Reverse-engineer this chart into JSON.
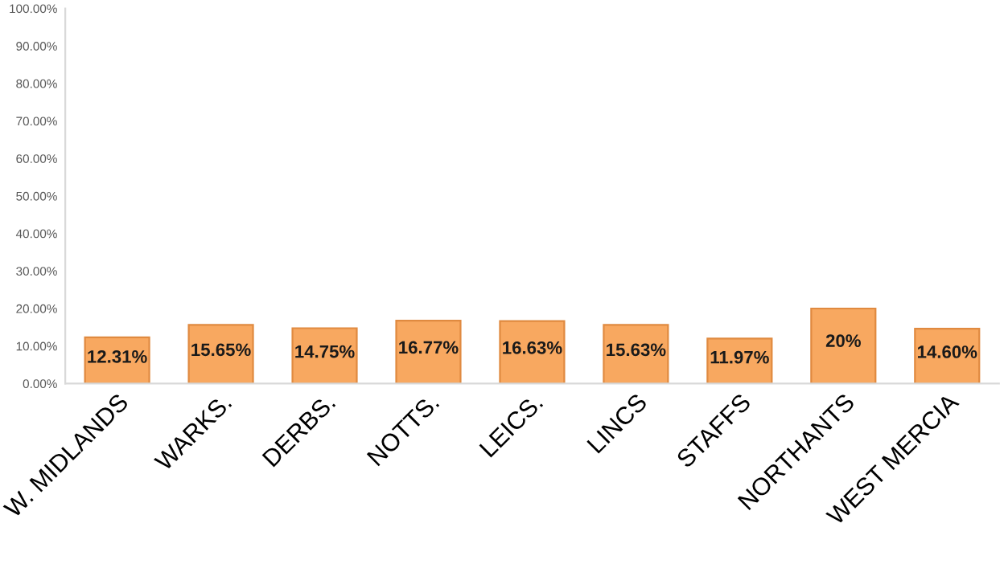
{
  "chart_data": {
    "type": "bar",
    "categories": [
      "W. MIDLANDS",
      "WARKS.",
      "DERBS.",
      "NOTTS.",
      "LEICS.",
      "LINCS",
      "STAFFS",
      "NORTHANTS",
      "WEST MERCIA"
    ],
    "values": [
      12.31,
      15.65,
      14.75,
      16.77,
      16.63,
      15.63,
      11.97,
      20,
      14.6
    ],
    "value_labels": [
      "12.31%",
      "15.65%",
      "14.75%",
      "16.77%",
      "16.63%",
      "15.63%",
      "11.97%",
      "20%",
      "14.60%"
    ],
    "color": "#f8a860",
    "ylim": [
      0,
      100
    ],
    "yticks": [
      {
        "value": 0,
        "label": "0.00%"
      },
      {
        "value": 10,
        "label": "10.00%"
      },
      {
        "value": 20,
        "label": "20.00%"
      },
      {
        "value": 30,
        "label": "30.00%"
      },
      {
        "value": 40,
        "label": "40.00%"
      },
      {
        "value": 50,
        "label": "50.00%"
      },
      {
        "value": 60,
        "label": "60.00%"
      },
      {
        "value": 70,
        "label": "70.00%"
      },
      {
        "value": 80,
        "label": "80.00%"
      },
      {
        "value": 90,
        "label": "90.00%"
      },
      {
        "value": 100,
        "label": "100.00%"
      }
    ],
    "grid": false,
    "legend": false
  }
}
